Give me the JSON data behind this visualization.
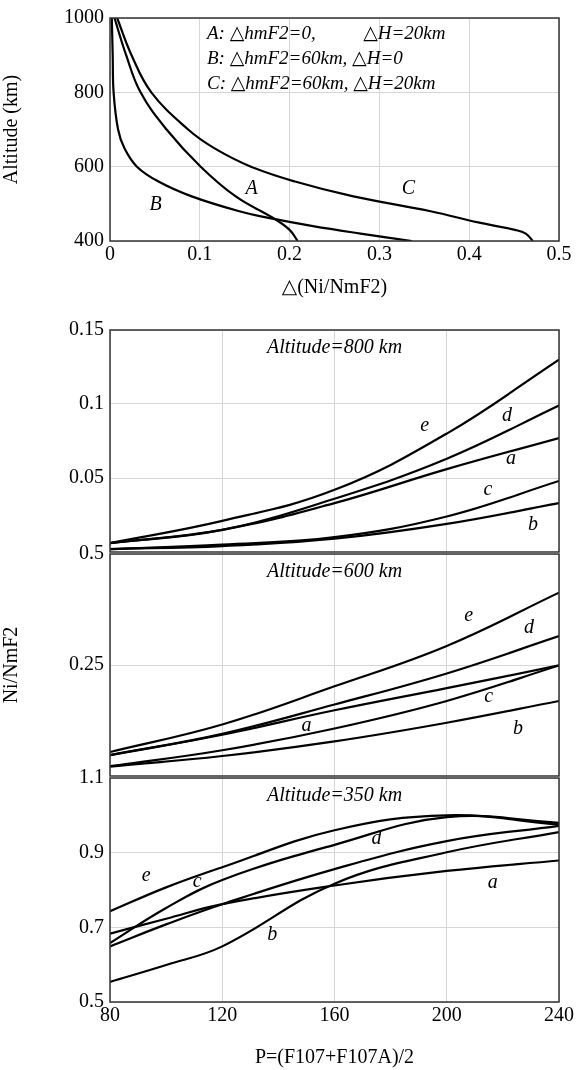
{
  "chart_data": [
    {
      "type": "line",
      "xlabel": "△(Ni/NmF2)",
      "ylabel": "Altitude (km)",
      "xlim": [
        0,
        0.5
      ],
      "xticks": [
        0,
        0.1,
        0.2,
        0.3,
        0.4,
        0.5
      ],
      "ylim": [
        400,
        1000
      ],
      "yticks": [
        400,
        600,
        800,
        1000
      ],
      "grid": true,
      "legend": false,
      "marker": "none",
      "line_style": "solid",
      "series": [
        {
          "name": "A",
          "color": "#000000",
          "x": [
            0.005,
            0.018,
            0.034,
            0.063,
            0.101,
            0.14,
            0.183,
            0.2,
            0.209
          ],
          "values": [
            1000,
            900,
            800,
            700,
            600,
            520,
            460,
            430,
            400
          ]
        },
        {
          "name": "B",
          "color": "#000000",
          "x": [
            0.002,
            0.003,
            0.004,
            0.009,
            0.016,
            0.03,
            0.054,
            0.091,
            0.144,
            0.181,
            0.226,
            0.279,
            0.336
          ],
          "values": [
            1000,
            900,
            800,
            700,
            650,
            600,
            560,
            520,
            480,
            460,
            440,
            420,
            400
          ]
        },
        {
          "name": "C",
          "color": "#000000",
          "x": [
            0.008,
            0.024,
            0.046,
            0.087,
            0.116,
            0.157,
            0.206,
            0.271,
            0.357,
            0.41,
            0.451,
            0.463,
            0.471
          ],
          "values": [
            1000,
            900,
            800,
            700,
            650,
            600,
            560,
            520,
            480,
            450,
            430,
            420,
            400
          ]
        }
      ],
      "annotations": [
        "A: △hmF2=0,          △H=20km",
        "B: △hmF2=60km, △H=0",
        "C: △hmF2=60km, △H=20km"
      ]
    },
    {
      "type": "line",
      "title": "Altitude=800 km",
      "x": [
        80,
        120,
        160,
        200,
        240
      ],
      "xlim": [
        80,
        240
      ],
      "xticks": [
        80,
        120,
        160,
        200,
        240
      ],
      "ylim": [
        0,
        0.15
      ],
      "yticks": [
        0.05,
        0.1,
        0.15
      ],
      "tick_labels": "y",
      "grid": true,
      "legend": false,
      "marker": "none",
      "line_style": "solid",
      "series": [
        {
          "name": "a",
          "color": "#000000",
          "values": [
            0.006,
            0.015,
            0.033,
            0.056,
            0.077
          ]
        },
        {
          "name": "b",
          "color": "#000000",
          "values": [
            0.002,
            0.004,
            0.009,
            0.019,
            0.033
          ]
        },
        {
          "name": "c",
          "color": "#000000",
          "values": [
            0.002,
            0.005,
            0.01,
            0.024,
            0.048
          ]
        },
        {
          "name": "d",
          "color": "#000000",
          "values": [
            0.006,
            0.015,
            0.036,
            0.063,
            0.099
          ]
        },
        {
          "name": "e",
          "color": "#000000",
          "values": [
            0.006,
            0.021,
            0.042,
            0.08,
            0.13
          ]
        }
      ]
    },
    {
      "type": "line",
      "title": "Altitude=600 km",
      "ylabel": "Ni/NmF2",
      "x": [
        80,
        120,
        160,
        200,
        240
      ],
      "xlim": [
        80,
        240
      ],
      "xticks": [
        80,
        120,
        160,
        200,
        240
      ],
      "ylim": [
        0,
        0.5
      ],
      "yticks": [
        0.25,
        0.5
      ],
      "tick_labels": "y",
      "grid": true,
      "legend": false,
      "marker": "none",
      "line_style": "solid",
      "series": [
        {
          "name": "a",
          "color": "#000000",
          "values": [
            0.047,
            0.093,
            0.148,
            0.198,
            0.249
          ]
        },
        {
          "name": "b",
          "color": "#000000",
          "values": [
            0.021,
            0.045,
            0.078,
            0.12,
            0.169
          ]
        },
        {
          "name": "c",
          "color": "#000000",
          "values": [
            0.022,
            0.058,
            0.107,
            0.169,
            0.249
          ]
        },
        {
          "name": "d",
          "color": "#000000",
          "values": [
            0.047,
            0.095,
            0.161,
            0.231,
            0.315
          ]
        },
        {
          "name": "e",
          "color": "#000000",
          "values": [
            0.054,
            0.116,
            0.202,
            0.293,
            0.413
          ]
        }
      ]
    },
    {
      "type": "line",
      "title": "Altitude=350 km",
      "xlabel": "P=(F107+F107A)/2",
      "x": [
        80,
        100,
        120,
        160,
        200,
        240
      ],
      "xlim": [
        80,
        240
      ],
      "xticks": [
        80,
        120,
        160,
        200,
        240
      ],
      "ylim": [
        0.5,
        1.1
      ],
      "yticks": [
        0.5,
        0.7,
        0.9,
        1.1
      ],
      "grid": true,
      "legend": false,
      "marker": "none",
      "line_style": "solid",
      "series": [
        {
          "name": "a",
          "color": "#000000",
          "values": [
            0.683,
            0.723,
            0.762,
            0.812,
            0.851,
            0.879
          ]
        },
        {
          "name": "b",
          "color": "#000000",
          "values": [
            0.554,
            0.599,
            0.649,
            0.817,
            0.901,
            0.955
          ]
        },
        {
          "name": "c",
          "color": "#000000",
          "values": [
            0.658,
            0.752,
            0.827,
            0.921,
            0.995,
            0.98
          ]
        },
        {
          "name": "d",
          "color": "#000000",
          "values": [
            0.649,
            0.708,
            0.762,
            0.856,
            0.931,
            0.972
          ]
        },
        {
          "name": "e",
          "color": "#000000",
          "values": [
            0.743,
            0.807,
            0.861,
            0.96,
            1.0,
            0.975
          ]
        }
      ]
    }
  ]
}
